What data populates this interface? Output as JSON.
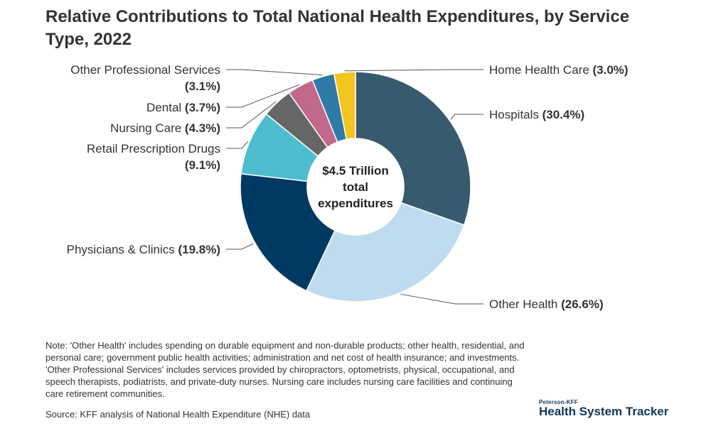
{
  "title": "Relative Contributions to Total National Health Expenditures, by Service Type, 2022",
  "chart_data": {
    "type": "pie",
    "center_label": [
      "$4.5 Trillion",
      "total",
      "expenditures"
    ],
    "slices": [
      {
        "name": "Hospitals",
        "value": 30.4,
        "pct_label": "(30.4%)",
        "color": "#375a6e"
      },
      {
        "name": "Other Health",
        "value": 26.6,
        "pct_label": "(26.6%)",
        "color": "#bedbf0"
      },
      {
        "name": "Physicians & Clinics",
        "value": 19.8,
        "pct_label": "(19.8%)",
        "color": "#003a62"
      },
      {
        "name": "Retail Prescription Drugs",
        "value": 9.1,
        "pct_label": "(9.1%)",
        "color": "#4dbdce"
      },
      {
        "name": "Nursing Care",
        "value": 4.3,
        "pct_label": "(4.3%)",
        "color": "#666666"
      },
      {
        "name": "Dental",
        "value": 3.7,
        "pct_label": "(3.7%)",
        "color": "#c1698a"
      },
      {
        "name": "Other Professional Services",
        "value": 3.1,
        "pct_label": "(3.1%)",
        "color": "#2f7aa6"
      },
      {
        "name": "Home Health Care",
        "value": 3.0,
        "pct_label": "(3.0%)",
        "color": "#f5c51f"
      }
    ]
  },
  "note": "Note: 'Other Health' includes spending on durable equipment and non-durable products; other health, residential, and personal care; government public health activities; administration and net cost of health insurance; and investments. 'Other Professional Services' includes services provided by chiropractors, optometrists, physical, occupational, and speech therapists, podiatrists, and private-duty nurses. Nursing care includes nursing care facilities and continuing care retirement communities.",
  "source": "Source: KFF analysis of National Health Expenditure (NHE) data",
  "logo": {
    "small": "Peterson-KFF",
    "big": "Health System Tracker"
  }
}
